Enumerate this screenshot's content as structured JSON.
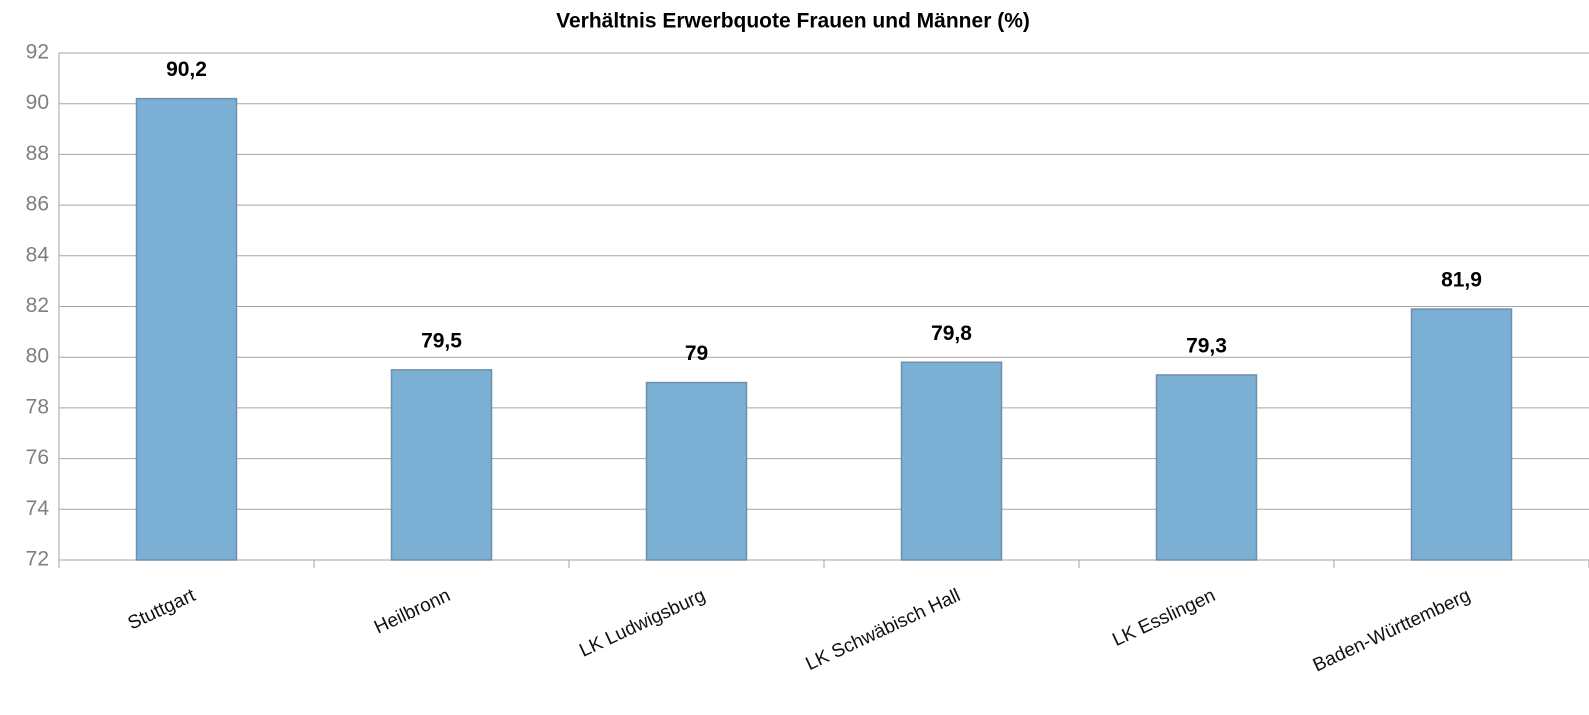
{
  "chart_data": {
    "type": "bar",
    "title": "Verhältnis Erwerbquote Frauen und Männer (%)",
    "categories": [
      "Stuttgart",
      "Heilbronn",
      "LK Ludwigsburg",
      "LK Schwäbisch Hall",
      "LK Esslingen",
      "Baden-Württemberg"
    ],
    "values": [
      90.2,
      79.5,
      79,
      79.8,
      79.3,
      81.9
    ],
    "value_labels": [
      "90,2",
      "79,5",
      "79",
      "79,8",
      "79,3",
      "81,9"
    ],
    "color": "#7bafd4",
    "ylim": [
      72,
      92
    ],
    "yticks": [
      72,
      74,
      76,
      78,
      80,
      82,
      84,
      86,
      88,
      90,
      92
    ],
    "grid": true
  }
}
